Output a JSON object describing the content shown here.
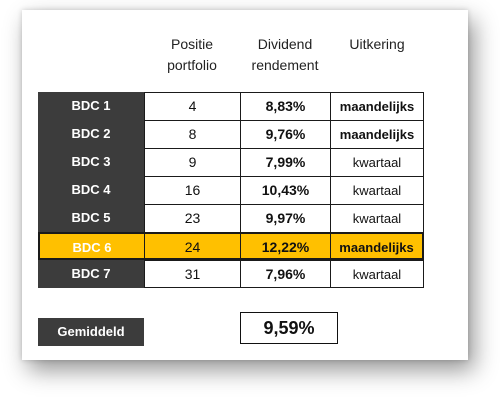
{
  "header": {
    "positie": [
      "Positie",
      "portfolio"
    ],
    "dividend": [
      "Dividend",
      "rendement"
    ],
    "uitkering": [
      "Uitkering"
    ]
  },
  "rows": [
    {
      "name": "BDC 1",
      "pos": "4",
      "div": "8,83%",
      "uit": "maandelijks",
      "uit_bold": true,
      "highlight": false
    },
    {
      "name": "BDC 2",
      "pos": "8",
      "div": "9,76%",
      "uit": "maandelijks",
      "uit_bold": true,
      "highlight": false
    },
    {
      "name": "BDC 3",
      "pos": "9",
      "div": "7,99%",
      "uit": "kwartaal",
      "uit_bold": false,
      "highlight": false
    },
    {
      "name": "BDC 4",
      "pos": "16",
      "div": "10,43%",
      "uit": "kwartaal",
      "uit_bold": false,
      "highlight": false
    },
    {
      "name": "BDC 5",
      "pos": "23",
      "div": "9,97%",
      "uit": "kwartaal",
      "uit_bold": false,
      "highlight": false
    },
    {
      "name": "BDC 6",
      "pos": "24",
      "div": "12,22%",
      "uit": "maandelijks",
      "uit_bold": true,
      "highlight": true
    },
    {
      "name": "BDC 7",
      "pos": "31",
      "div": "7,96%",
      "uit": "kwartaal",
      "uit_bold": false,
      "highlight": false
    }
  ],
  "average": {
    "label": "Gemiddeld",
    "value": "9,59%"
  },
  "colors": {
    "label_bg": "#3c3c3c",
    "highlight": "#ffc000"
  }
}
